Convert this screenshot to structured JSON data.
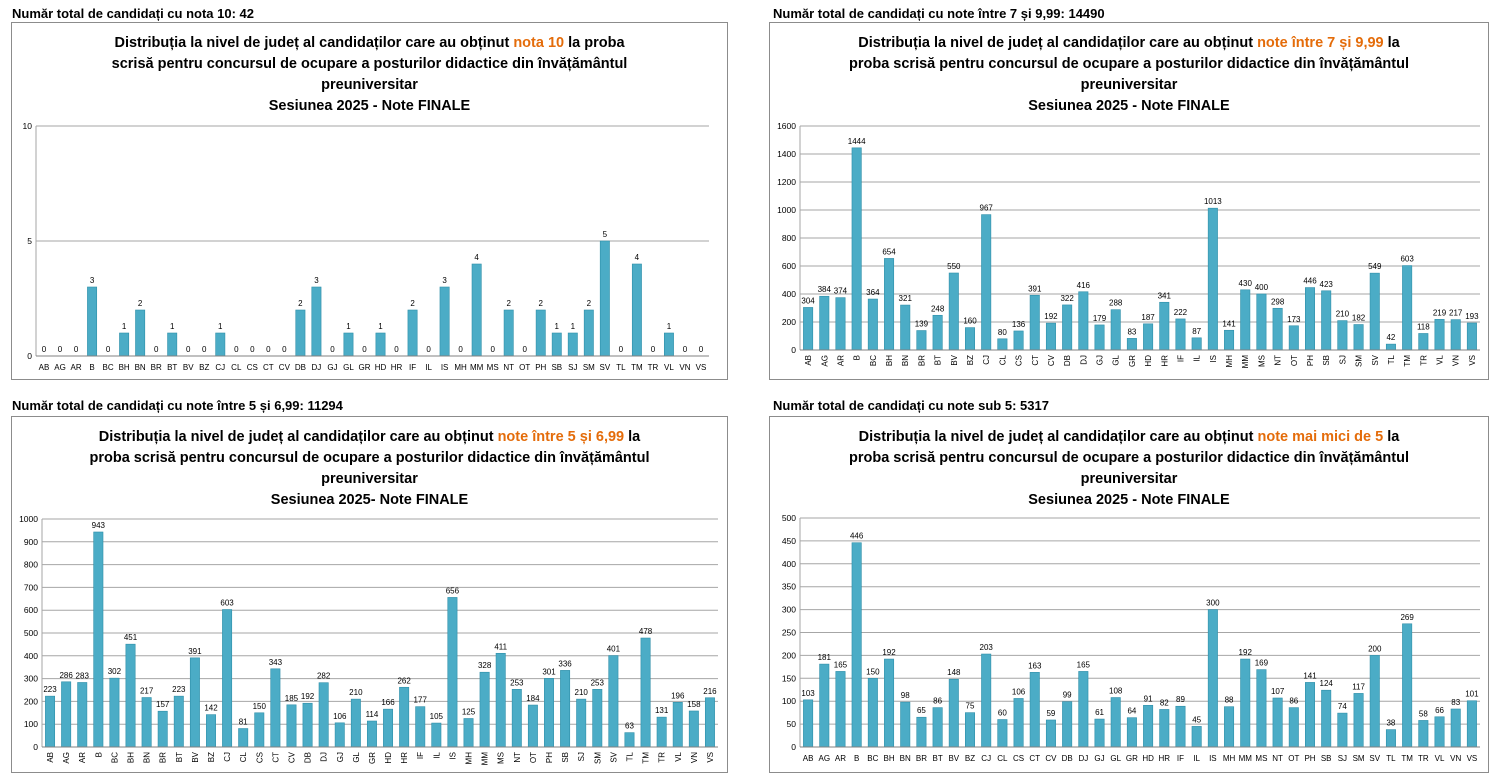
{
  "categories": [
    "AB",
    "AG",
    "AR",
    "B",
    "BC",
    "BH",
    "BN",
    "BR",
    "BT",
    "BV",
    "BZ",
    "CJ",
    "CL",
    "CS",
    "CT",
    "CV",
    "DB",
    "DJ",
    "GJ",
    "GL",
    "GR",
    "HD",
    "HR",
    "IF",
    "IL",
    "IS",
    "MH",
    "MM",
    "MS",
    "NT",
    "OT",
    "PH",
    "SB",
    "SJ",
    "SM",
    "SV",
    "TL",
    "TM",
    "TR",
    "VL",
    "VN",
    "VS"
  ],
  "colors": {
    "bar": "#4bacc6",
    "bar_edge": "#2e8fa9",
    "title_highlight": "#e46c0a",
    "grid": "#a6a6a6",
    "border": "#8c8c8c"
  },
  "panels": [
    {
      "heading": "Număr total de candidați cu nota 10: 42",
      "title_line1_pre": "Distribuția la nivel de județ al candidaților care au obținut ",
      "title_highlight": "nota 10",
      "title_line1_post": " la proba",
      "title_line2": "scrisă pentru concursul de ocupare a posturilor didactice din învățământul",
      "title_line3": "preuniversitar",
      "title_line4": "Sesiunea 2025 - Note FINALE"
    },
    {
      "heading": "Număr total de candidați cu note între 7 și 9,99: 14490",
      "title_line1_pre": "Distribuția la nivel de județ al candidaților care au obținut ",
      "title_highlight": "note între 7 și 9,99",
      "title_line1_post": " la",
      "title_line2": "proba scrisă pentru concursul de ocupare a posturilor didactice din învățământul",
      "title_line3": "preuniversitar",
      "title_line4": "Sesiunea 2025  - Note FINALE"
    },
    {
      "heading": "Număr total de candidați cu note între 5 și 6,99: 11294",
      "title_line1_pre": "Distribuția la nivel de județ al candidaților care au obținut ",
      "title_highlight": "note între 5 și 6,99",
      "title_line1_post": " la",
      "title_line2": "proba scrisă pentru concursul de ocupare a posturilor didactice din învățământul",
      "title_line3": "preuniversitar",
      "title_line4": "Sesiunea 2025- Note FINALE"
    },
    {
      "heading": "Număr total de candidați cu note sub 5: 5317",
      "title_line1_pre": "Distribuția la nivel de județ al candidaților care au obținut ",
      "title_highlight": "note mai mici  de 5",
      "title_line1_post": " la",
      "title_line2": "proba scrisă pentru concursul de ocupare a posturilor didactice din învățământul",
      "title_line3": "preuniversitar",
      "title_line4": "Sesiunea 2025 - Note FINALE"
    }
  ],
  "chart_data": [
    {
      "type": "bar",
      "title": "Distribuția la nivel de județ al candidaților care au obținut nota 10 la proba scrisă pentru concursul de ocupare a posturilor didactice din învățământul preuniversitar Sesiunea 2025 - Note FINALE",
      "categories": [
        "AB",
        "AG",
        "AR",
        "B",
        "BC",
        "BH",
        "BN",
        "BR",
        "BT",
        "BV",
        "BZ",
        "CJ",
        "CL",
        "CS",
        "CT",
        "CV",
        "DB",
        "DJ",
        "GJ",
        "GL",
        "GR",
        "HD",
        "HR",
        "IF",
        "IL",
        "IS",
        "MH",
        "MM",
        "MS",
        "NT",
        "OT",
        "PH",
        "SB",
        "SJ",
        "SM",
        "SV",
        "TL",
        "TM",
        "TR",
        "VL",
        "VN",
        "VS"
      ],
      "values": [
        0,
        0,
        0,
        3,
        0,
        1,
        2,
        0,
        1,
        0,
        0,
        1,
        0,
        0,
        0,
        0,
        2,
        3,
        0,
        1,
        0,
        1,
        0,
        2,
        0,
        3,
        0,
        4,
        0,
        2,
        0,
        2,
        1,
        1,
        2,
        5,
        0,
        4,
        0,
        1,
        0,
        0
      ],
      "ylim": [
        0,
        10
      ],
      "yticks": [
        0,
        5,
        10
      ],
      "grid": true,
      "xlabels_rotated": false
    },
    {
      "type": "bar",
      "title": "Distribuția la nivel de județ al candidaților care au obținut note între 7 și 9,99 la proba scrisă pentru concursul de ocupare a posturilor didactice din învățământul preuniversitar Sesiunea 2025  - Note FINALE",
      "categories": [
        "AB",
        "AG",
        "AR",
        "B",
        "BC",
        "BH",
        "BN",
        "BR",
        "BT",
        "BV",
        "BZ",
        "CJ",
        "CL",
        "CS",
        "CT",
        "CV",
        "DB",
        "DJ",
        "GJ",
        "GL",
        "GR",
        "HD",
        "HR",
        "IF",
        "IL",
        "IS",
        "MH",
        "MM",
        "MS",
        "NT",
        "OT",
        "PH",
        "SB",
        "SJ",
        "SM",
        "SV",
        "TL",
        "TM",
        "TR",
        "VL",
        "VN",
        "VS"
      ],
      "values": [
        304,
        384,
        374,
        1444,
        364,
        654,
        321,
        139,
        248,
        550,
        160,
        967,
        80,
        136,
        391,
        192,
        322,
        416,
        179,
        288,
        83,
        187,
        341,
        222,
        87,
        1013,
        141,
        430,
        400,
        298,
        173,
        446,
        423,
        210,
        182,
        549,
        42,
        603,
        118,
        219,
        217,
        193
      ],
      "ylim": [
        0,
        1600
      ],
      "yticks": [
        0,
        200,
        400,
        600,
        800,
        1000,
        1200,
        1400,
        1600
      ],
      "grid": true,
      "xlabels_rotated": true
    },
    {
      "type": "bar",
      "title": "Distribuția la nivel de județ al candidaților care au obținut note între 5 și 6,99 la proba scrisă pentru concursul de ocupare a posturilor didactice din învățământul preuniversitar Sesiunea 2025- Note FINALE",
      "categories": [
        "AB",
        "AG",
        "AR",
        "B",
        "BC",
        "BH",
        "BN",
        "BR",
        "BT",
        "BV",
        "BZ",
        "CJ",
        "CL",
        "CS",
        "CT",
        "CV",
        "DB",
        "DJ",
        "GJ",
        "GL",
        "GR",
        "HD",
        "HR",
        "IF",
        "IL",
        "IS",
        "MH",
        "MM",
        "MS",
        "NT",
        "OT",
        "PH",
        "SB",
        "SJ",
        "SM",
        "SV",
        "TL",
        "TM",
        "TR",
        "VL",
        "VN",
        "VS"
      ],
      "values": [
        223,
        286,
        283,
        943,
        302,
        451,
        217,
        157,
        223,
        391,
        142,
        603,
        81,
        150,
        343,
        185,
        192,
        282,
        106,
        210,
        114,
        166,
        262,
        177,
        105,
        656,
        125,
        328,
        411,
        253,
        184,
        301,
        336,
        210,
        253,
        401,
        63,
        478,
        131,
        196,
        158,
        216
      ],
      "ylim": [
        0,
        1000
      ],
      "yticks": [
        0,
        100,
        200,
        300,
        400,
        500,
        600,
        700,
        800,
        900,
        1000
      ],
      "grid": true,
      "xlabels_rotated": true
    },
    {
      "type": "bar",
      "title": "Distribuția la nivel de județ al candidaților care au obținut note mai mici  de 5 la proba scrisă pentru concursul de ocupare a posturilor didactice din învățământul preuniversitar Sesiunea 2025 - Note FINALE",
      "categories": [
        "AB",
        "AG",
        "AR",
        "B",
        "BC",
        "BH",
        "BN",
        "BR",
        "BT",
        "BV",
        "BZ",
        "CJ",
        "CL",
        "CS",
        "CT",
        "CV",
        "DB",
        "DJ",
        "GJ",
        "GL",
        "GR",
        "HD",
        "HR",
        "IF",
        "IL",
        "IS",
        "MH",
        "MM",
        "MS",
        "NT",
        "OT",
        "PH",
        "SB",
        "SJ",
        "SM",
        "SV",
        "TL",
        "TM",
        "TR",
        "VL",
        "VN",
        "VS"
      ],
      "values": [
        103,
        181,
        165,
        446,
        150,
        192,
        98,
        65,
        86,
        148,
        75,
        203,
        60,
        106,
        163,
        59,
        99,
        165,
        61,
        108,
        64,
        91,
        82,
        89,
        45,
        300,
        88,
        192,
        169,
        107,
        86,
        141,
        124,
        74,
        117,
        200,
        38,
        269,
        58,
        66,
        83,
        101
      ],
      "ylim": [
        0,
        500
      ],
      "yticks": [
        0,
        50,
        100,
        150,
        200,
        250,
        300,
        350,
        400,
        450,
        500
      ],
      "grid": true,
      "xlabels_rotated": false
    }
  ]
}
